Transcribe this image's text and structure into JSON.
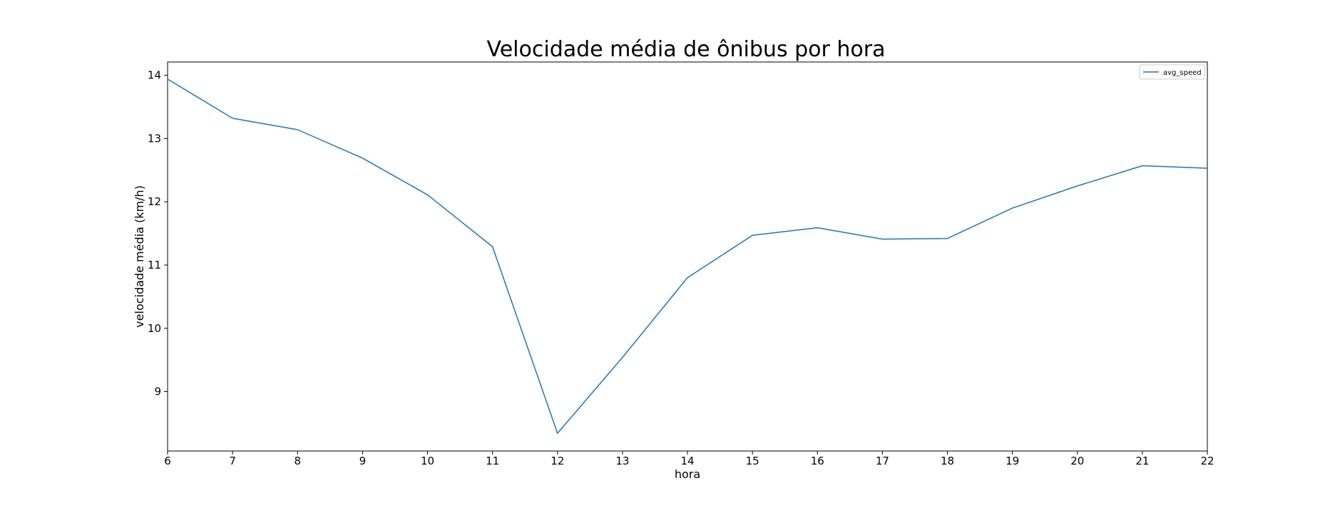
{
  "chart_data": {
    "type": "line",
    "title": "Velocidade média de ônibus por hora",
    "xlabel": "hora",
    "ylabel": "velocidade média (km/h)",
    "x": [
      6,
      7,
      8,
      9,
      10,
      11,
      12,
      13,
      14,
      15,
      16,
      17,
      18,
      19,
      20,
      21,
      22
    ],
    "xticks": [
      "6",
      "7",
      "8",
      "9",
      "10",
      "11",
      "12",
      "13",
      "14",
      "15",
      "16",
      "17",
      "18",
      "19",
      "20",
      "21",
      "22"
    ],
    "yticks": [
      "9",
      "10",
      "11",
      "12",
      "13",
      "14"
    ],
    "xlim": [
      6,
      22
    ],
    "ylim": [
      8.06,
      14.21
    ],
    "series": [
      {
        "name": "avg_speed",
        "color": "#1f77b4",
        "values": [
          13.94,
          13.32,
          13.14,
          12.69,
          12.11,
          11.29,
          8.34,
          9.54,
          10.8,
          11.47,
          11.59,
          11.41,
          11.42,
          11.9,
          12.25,
          12.57,
          12.53
        ]
      }
    ],
    "legend": {
      "placement": "top-right",
      "entries": [
        "avg_speed"
      ]
    },
    "grid": false
  }
}
